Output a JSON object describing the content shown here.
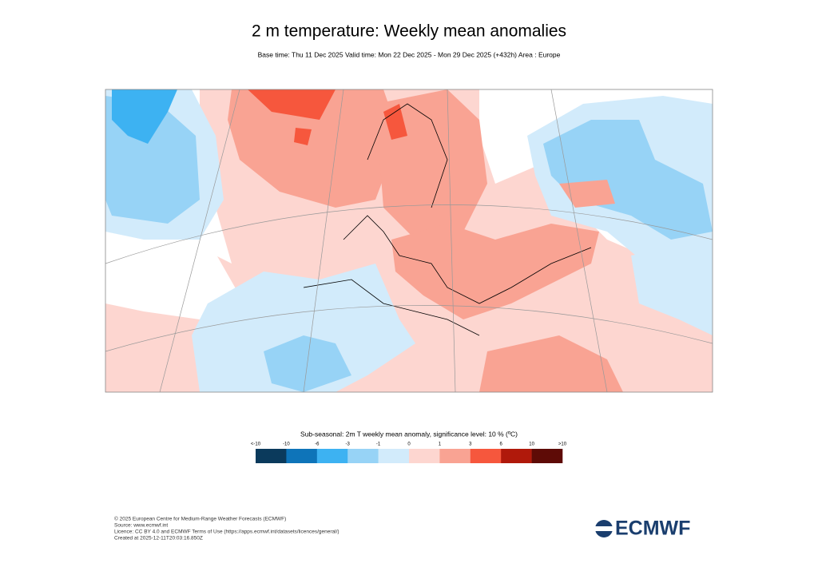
{
  "header": {
    "title": "2 m temperature: Weekly mean anomalies",
    "subtitle": "Base time: Thu 11 Dec 2025 Valid time: Mon 22 Dec 2025 - Mon 29 Dec 2025 (+432h) Area : Europe"
  },
  "colorbar": {
    "title": "Sub-seasonal: 2m T weekly mean anomaly, significance level: 10 % (ºC)",
    "labels": [
      "<-10",
      "-10",
      "-6",
      "-3",
      "-1",
      "0",
      "1",
      "3",
      "6",
      "10",
      ">10"
    ],
    "colors": [
      "#0b3a5c",
      "#0e74b9",
      "#3db2f2",
      "#97d3f6",
      "#d2ebfb",
      "#fdd6d0",
      "#f9a393",
      "#f6573d",
      "#b0190b",
      "#5e0b06"
    ]
  },
  "footer": {
    "lines": [
      "© 2025 European Centre for Medium-Range Weather Forecasts (ECMWF)",
      "Source: www.ecmwf.int",
      "Licence: CC BY 4.0 and ECMWF Terms of Use (https://apps.ecmwf.int/datasets/licences/general/)",
      "Created at 2025-12-11T20:03:16.850Z"
    ],
    "logo": "ECMWF"
  }
}
